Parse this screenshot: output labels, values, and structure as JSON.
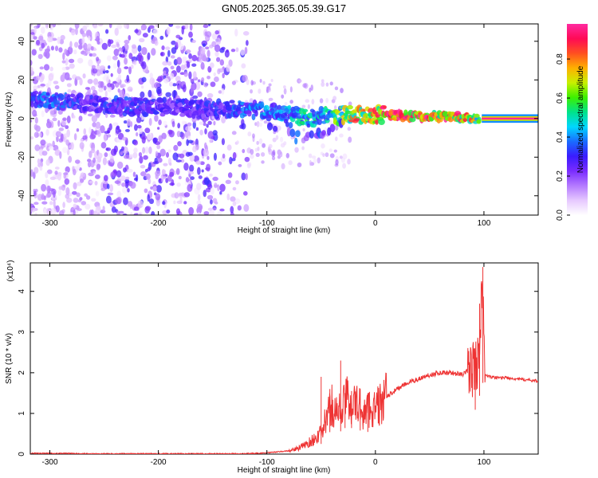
{
  "figure": {
    "title": "GN05.2025.365.05.39.G17"
  },
  "chart_data": [
    {
      "type": "heatmap",
      "xlabel": "Height of straight line (km)",
      "ylabel": "Frequency (Hz)",
      "xlim": [
        -318,
        150
      ],
      "ylim": [
        -50,
        49
      ],
      "xticks": [
        -300,
        -200,
        -100,
        0,
        100
      ],
      "yticks": [
        -40,
        -20,
        0,
        20,
        40
      ],
      "grid": false,
      "colorbar": {
        "label": "Normalized spectral amplitude",
        "range": [
          0,
          0.98
        ],
        "ticks": [
          0.0,
          0.2,
          0.4,
          0.6,
          0.8
        ],
        "colors": [
          "#ffffff",
          "#e6c8ff",
          "#b47aff",
          "#7a2cff",
          "#3a1cff",
          "#1a6cff",
          "#00d7ff",
          "#00e38a",
          "#3cf000",
          "#c8f000",
          "#ffb000",
          "#ff5020",
          "#ff0a55",
          "#ff2aa0"
        ]
      },
      "ridge": {
        "x": [
          -318,
          -300,
          -280,
          -260,
          -240,
          -220,
          -200,
          -180,
          -160,
          -140,
          -120,
          -100,
          -90,
          -80,
          -70,
          -60,
          -50,
          -40,
          -30,
          -20,
          -10,
          0,
          10,
          30,
          50,
          70,
          90,
          95,
          100,
          120,
          150
        ],
        "frequency": [
          10,
          9,
          8,
          7,
          7,
          6,
          6,
          6,
          5,
          5,
          5,
          4,
          3,
          2,
          1,
          0,
          2,
          1,
          2,
          2,
          2,
          2,
          2,
          1,
          1,
          1,
          0,
          0,
          0,
          0,
          0
        ],
        "amplitude": [
          0.35,
          0.4,
          0.35,
          0.3,
          0.35,
          0.35,
          0.3,
          0.3,
          0.3,
          0.35,
          0.4,
          0.45,
          0.4,
          0.45,
          0.5,
          0.55,
          0.5,
          0.6,
          0.7,
          0.8,
          0.85,
          0.9,
          0.95,
          0.95,
          0.9,
          0.9,
          0.8,
          0.6,
          0.98,
          0.98,
          0.98
        ]
      }
    },
    {
      "type": "line",
      "xlabel": "Height of straight line (km)",
      "ylabel": "SNR (10 * v/v)",
      "yscale_label": "(x10⁴)",
      "xlim": [
        -318,
        150
      ],
      "ylim": [
        0,
        4.7
      ],
      "xticks": [
        -300,
        -200,
        -100,
        0,
        100
      ],
      "yticks": [
        0,
        1,
        2,
        3,
        4
      ],
      "grid": false,
      "series": [
        {
          "color": "#ee3333",
          "x": [
            -318,
            -300,
            -250,
            -200,
            -150,
            -120,
            -100,
            -80,
            -70,
            -60,
            -50,
            -45,
            -40,
            -35,
            -30,
            -25,
            -20,
            -15,
            -10,
            -5,
            0,
            10,
            20,
            30,
            40,
            50,
            60,
            70,
            80,
            85,
            90,
            95,
            98,
            100,
            101,
            105,
            110,
            120,
            130,
            140,
            150
          ],
          "y": [
            0.02,
            0.02,
            0.01,
            0.01,
            0.01,
            0.01,
            0.03,
            0.08,
            0.15,
            0.3,
            0.5,
            0.9,
            1.2,
            1.0,
            1.2,
            1.4,
            1.2,
            1.2,
            1.0,
            1.15,
            1.1,
            1.4,
            1.6,
            1.75,
            1.85,
            1.95,
            2.0,
            2.0,
            1.95,
            2.05,
            2.1,
            2.3,
            4.0,
            3.0,
            1.95,
            1.9,
            1.88,
            1.88,
            1.85,
            1.82,
            1.8
          ],
          "spikes": [
            {
              "x": -50,
              "y": 1.9
            },
            {
              "x": -42,
              "y": 1.6
            },
            {
              "x": -32,
              "y": 2.3
            },
            {
              "x": -28,
              "y": 1.5
            },
            {
              "x": -22,
              "y": 1.55
            },
            {
              "x": -14,
              "y": 1.6
            },
            {
              "x": -7,
              "y": 1.5
            },
            {
              "x": 92,
              "y": 2.5
            },
            {
              "x": 96,
              "y": 3.7
            },
            {
              "x": 99,
              "y": 4.6
            }
          ]
        }
      ]
    }
  ]
}
